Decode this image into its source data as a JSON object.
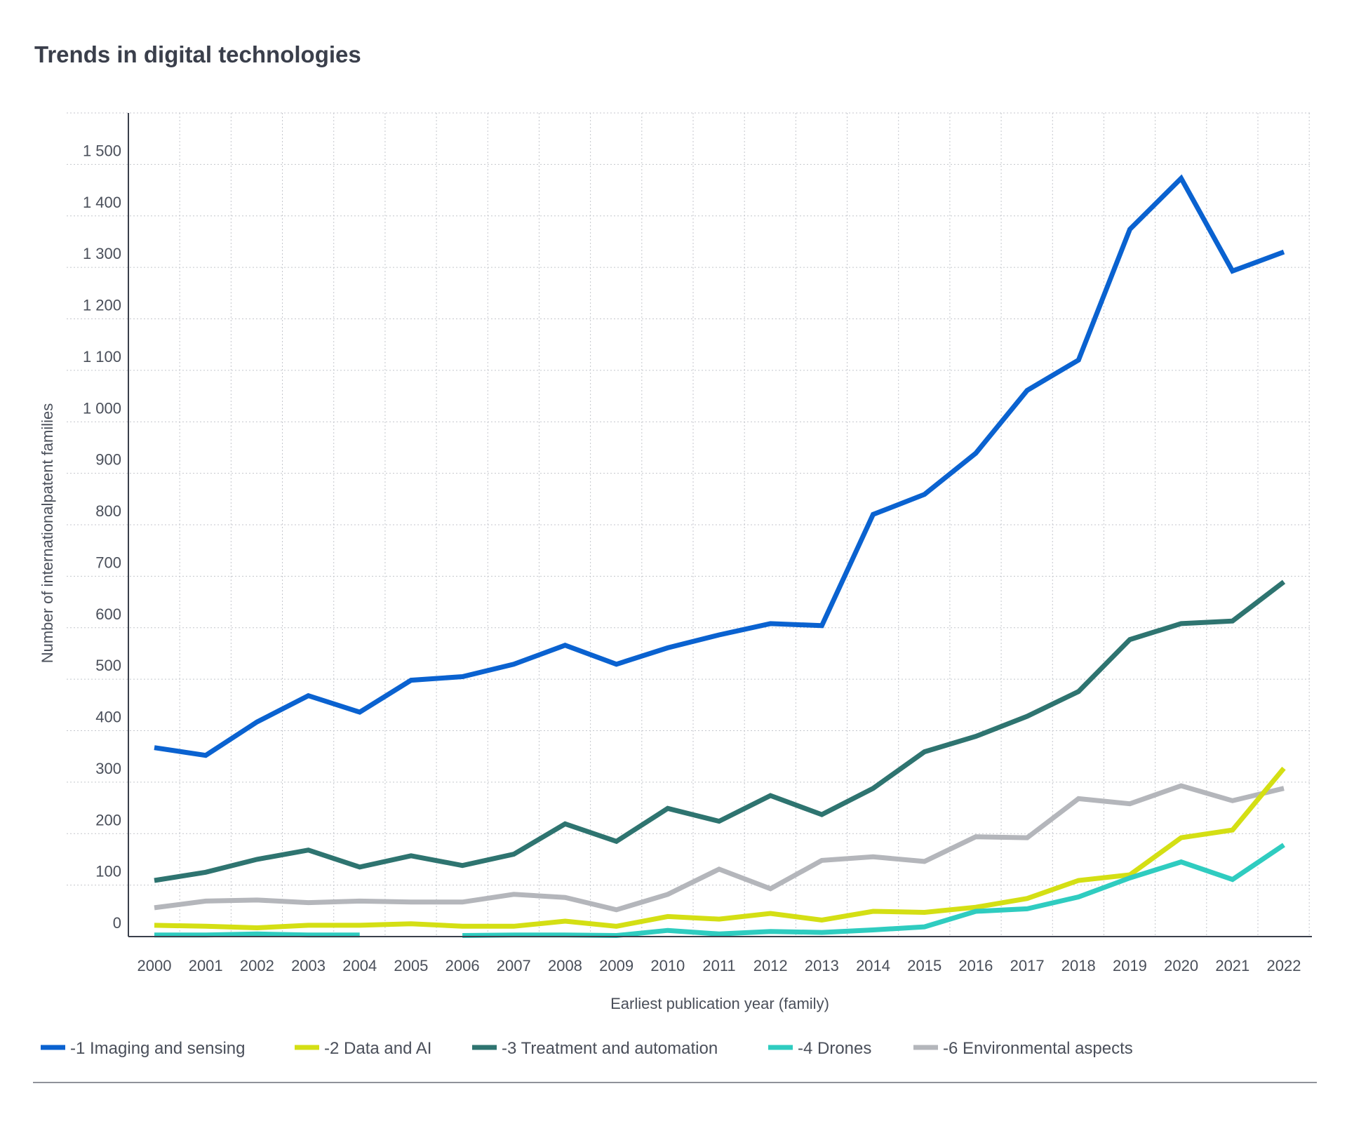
{
  "chart_data": {
    "type": "line",
    "title": "Trends in digital technologies",
    "xlabel": "Earliest publication year (family)",
    "ylabel": "Number of internationalpatent families",
    "ylim": [
      0,
      1600
    ],
    "yticks": [
      0,
      100,
      200,
      300,
      400,
      500,
      600,
      700,
      800,
      900,
      1000,
      1100,
      1200,
      1300,
      1400,
      1500
    ],
    "ytick_labels": [
      "0",
      "100",
      "200",
      "300",
      "400",
      "500",
      "600",
      "700",
      "800",
      "900",
      "1 000",
      "1 100",
      "1 200",
      "1 300",
      "1 400",
      "1 500"
    ],
    "grid": true,
    "legend_position": "bottom",
    "categories": [
      "2000",
      "2001",
      "2002",
      "2003",
      "2004",
      "2005",
      "2006",
      "2007",
      "2008",
      "2009",
      "2010",
      "2011",
      "2012",
      "2013",
      "2014",
      "2015",
      "2016",
      "2017",
      "2018",
      "2019",
      "2020",
      "2021",
      "2022"
    ],
    "series": [
      {
        "name": "-1 Imaging and sensing",
        "color": "#0a62d0",
        "values": [
          367,
          352,
          417,
          468,
          436,
          498,
          505,
          529,
          566,
          529,
          561,
          586,
          608,
          604,
          820,
          859,
          939,
          1061,
          1120,
          1374,
          1473,
          1293,
          1330
        ]
      },
      {
        "name": "-2 Data and AI",
        "color": "#d4df14",
        "values": [
          22,
          20,
          17,
          22,
          22,
          25,
          20,
          20,
          30,
          20,
          39,
          34,
          45,
          32,
          49,
          47,
          57,
          74,
          109,
          120,
          192,
          207,
          327
        ]
      },
      {
        "name": "-3 Treatment and automation",
        "color": "#2e7470",
        "values": [
          109,
          125,
          150,
          168,
          135,
          157,
          138,
          160,
          219,
          185,
          249,
          224,
          274,
          237,
          288,
          359,
          389,
          428,
          476,
          577,
          608,
          613,
          689
        ]
      },
      {
        "name": "-4 Drones",
        "color": "#2fccc0",
        "values": [
          3,
          3,
          5,
          3,
          3,
          null,
          2,
          3,
          3,
          2,
          12,
          5,
          10,
          8,
          13,
          19,
          49,
          54,
          77,
          114,
          145,
          111,
          178
        ]
      },
      {
        "name": "-6 Environmental aspects",
        "color": "#b4b6bb",
        "values": [
          56,
          69,
          71,
          66,
          69,
          67,
          67,
          82,
          76,
          52,
          82,
          131,
          93,
          148,
          155,
          146,
          194,
          192,
          268,
          258,
          293,
          264,
          288
        ]
      }
    ]
  }
}
